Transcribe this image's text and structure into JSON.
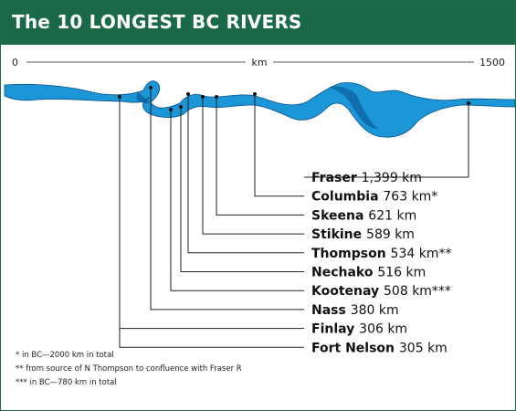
{
  "chart_data": {
    "type": "bar",
    "title": "The 10 LONGEST BC RIVERS",
    "axis": {
      "start_label": "0",
      "unit_label": "km",
      "end_label": "1500",
      "range": [
        0,
        1500
      ]
    },
    "categories": [
      "Fraser",
      "Columbia",
      "Skeena",
      "Stikine",
      "Thompson",
      "Nechako",
      "Kootenay",
      "Nass",
      "Finlay",
      "Fort Nelson"
    ],
    "value_labels": [
      "1,399 km",
      "763 km*",
      "621 km",
      "589 km",
      "534 km**",
      "516 km",
      "508 km***",
      "380 km",
      "306 km",
      "305 km"
    ],
    "values": [
      1399,
      763,
      621,
      589,
      534,
      516,
      508,
      380,
      306,
      305
    ]
  },
  "footnotes": [
    "* in BC—2000 km in total",
    "** from source of N Thompson to confluence with Fraser R",
    "*** in BC—780 km in total"
  ],
  "colors": {
    "header": "#1a6a47",
    "river": "#1b96d6",
    "river_dark": "#0a4f8a",
    "line": "#222222"
  }
}
